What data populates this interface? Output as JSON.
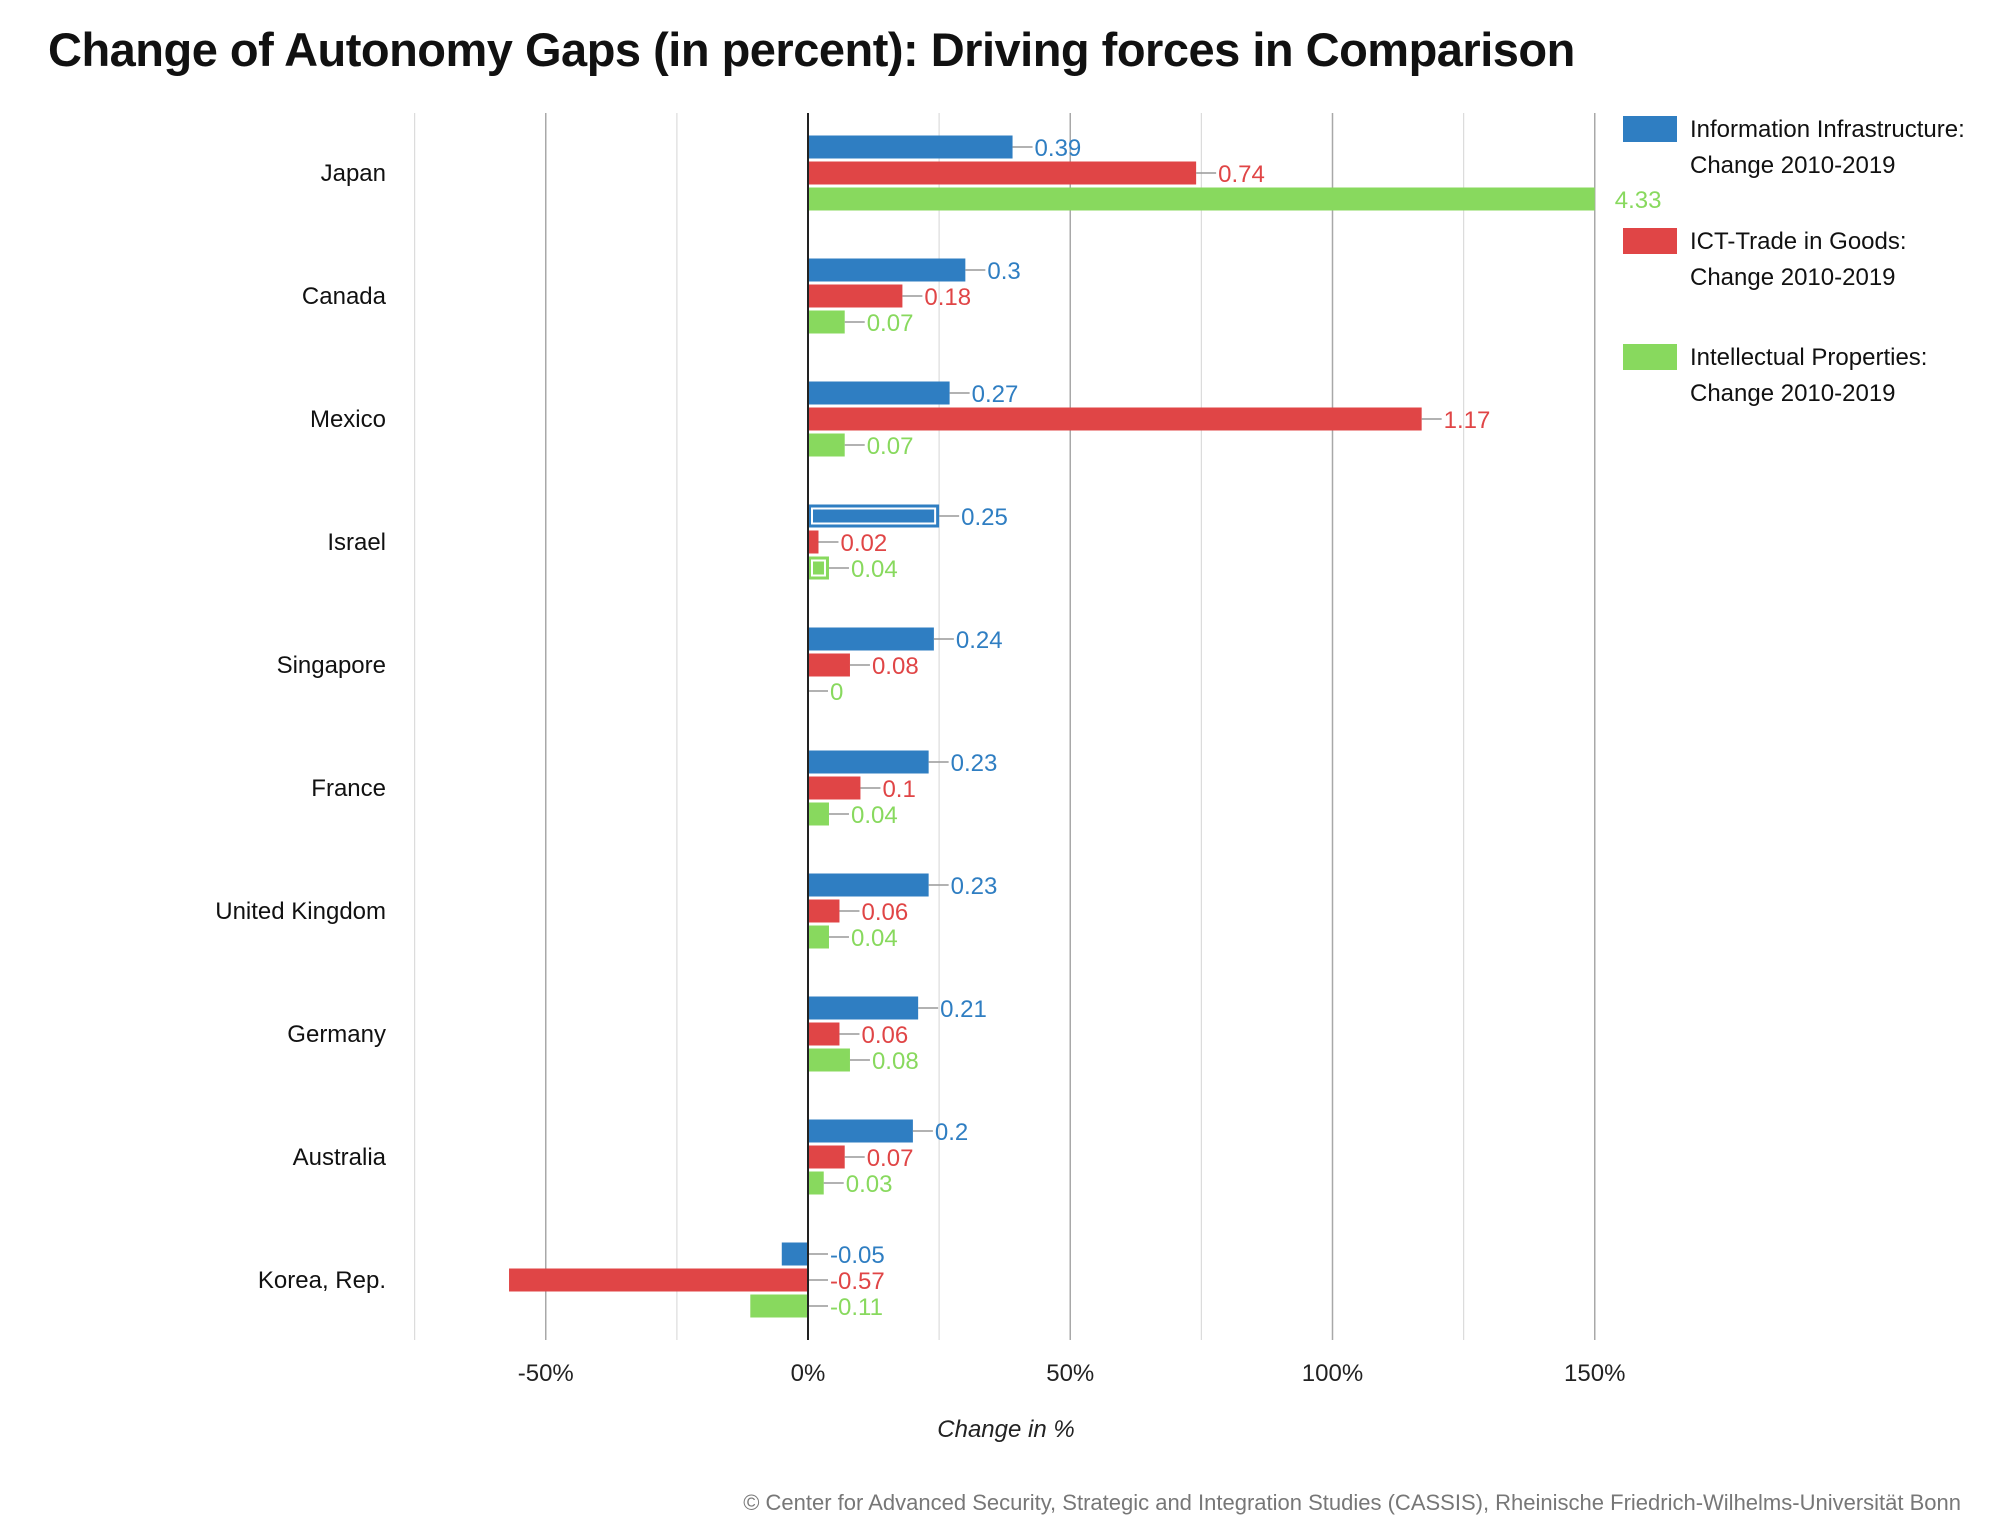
{
  "chart_data": {
    "type": "bar",
    "orientation": "horizontal",
    "title": "Change of Autonomy Gaps (in percent): Driving forces in Comparison",
    "xlabel": "Change in %",
    "ylabel": "",
    "xlim": [
      -75,
      150
    ],
    "xticks": [
      -50,
      0,
      50,
      100,
      150
    ],
    "xtick_labels": [
      "-50%",
      "0%",
      "50%",
      "100%",
      "150%"
    ],
    "grid": true,
    "legend_placement": "top-right",
    "categories": [
      "Japan",
      "Canada",
      "Mexico",
      "Israel",
      "Singapore",
      "France",
      "United Kingdom",
      "Germany",
      "Australia",
      "Korea, Rep."
    ],
    "series": [
      {
        "name": "Information Infrastructure: Change 2010-2019",
        "color": "#2f7ec2",
        "values": [
          0.39,
          0.3,
          0.27,
          0.25,
          0.24,
          0.23,
          0.23,
          0.21,
          0.2,
          -0.05
        ]
      },
      {
        "name": "ICT-Trade in Goods: Change 2010-2019",
        "color": "#e04546",
        "values": [
          0.74,
          0.18,
          1.17,
          0.02,
          0.08,
          0.1,
          0.06,
          0.06,
          0.07,
          -0.57
        ]
      },
      {
        "name": "Intellectual Properties: Change 2010-2019",
        "color": "#88d95e",
        "values": [
          4.33,
          0.07,
          0.07,
          0.04,
          0,
          0.04,
          0.04,
          0.08,
          0.03,
          -0.11
        ]
      }
    ],
    "highlighted": [
      {
        "category": "Israel",
        "series": [
          0,
          2
        ]
      }
    ]
  },
  "footer": "© Center for Advanced Security, Strategic and Integration Studies (CASSIS), Rheinische Friedrich-Wilhelms-Universität Bonn"
}
